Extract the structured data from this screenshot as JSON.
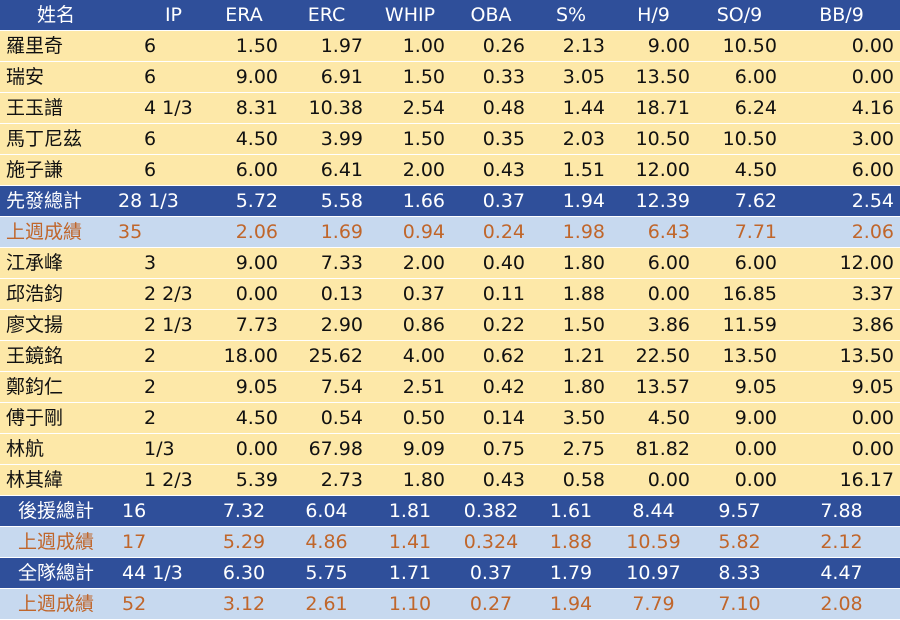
{
  "headers": [
    "姓名",
    "IP",
    "ERA",
    "ERC",
    "WHIP",
    "OBA",
    "S%",
    "H/9",
    "SO/9",
    "BB/9"
  ],
  "starters": [
    [
      "羅里奇",
      "6",
      "1.50",
      "1.97",
      "1.00",
      "0.26",
      "2.13",
      "9.00",
      "10.50",
      "0.00"
    ],
    [
      "瑞安",
      "6",
      "9.00",
      "6.91",
      "1.50",
      "0.33",
      "3.05",
      "13.50",
      "6.00",
      "0.00"
    ],
    [
      "王玉譜",
      "4 1/3",
      "8.31",
      "10.38",
      "2.54",
      "0.48",
      "1.44",
      "18.71",
      "6.24",
      "4.16"
    ],
    [
      "馬丁尼茲",
      "6",
      "4.50",
      "3.99",
      "1.50",
      "0.35",
      "2.03",
      "10.50",
      "10.50",
      "3.00"
    ],
    [
      "施子謙",
      "6",
      "6.00",
      "6.41",
      "2.00",
      "0.43",
      "1.51",
      "12.00",
      "4.50",
      "6.00"
    ]
  ],
  "starters_total": [
    "先發總計",
    "28 1/3",
    "5.72",
    "5.58",
    "1.66",
    "0.37",
    "1.94",
    "12.39",
    "7.62",
    "2.54"
  ],
  "starters_last_week": [
    "上週成績",
    "35",
    "2.06",
    "1.69",
    "0.94",
    "0.24",
    "1.98",
    "6.43",
    "7.71",
    "2.06"
  ],
  "relievers": [
    [
      "江承峰",
      "3",
      "9.00",
      "7.33",
      "2.00",
      "0.40",
      "1.80",
      "6.00",
      "6.00",
      "12.00"
    ],
    [
      "邱浩鈞",
      "2 2/3",
      "0.00",
      "0.13",
      "0.37",
      "0.11",
      "1.88",
      "0.00",
      "16.85",
      "3.37"
    ],
    [
      "廖文揚",
      "2 1/3",
      "7.73",
      "2.90",
      "0.86",
      "0.22",
      "1.50",
      "3.86",
      "11.59",
      "3.86"
    ],
    [
      "王鏡銘",
      "2",
      "18.00",
      "25.62",
      "4.00",
      "0.62",
      "1.21",
      "22.50",
      "13.50",
      "13.50"
    ],
    [
      "鄭鈞仁",
      "2",
      "9.05",
      "7.54",
      "2.51",
      "0.42",
      "1.80",
      "13.57",
      "9.05",
      "9.05"
    ],
    [
      "傅于剛",
      "2",
      "4.50",
      "0.54",
      "0.50",
      "0.14",
      "3.50",
      "4.50",
      "9.00",
      "0.00"
    ],
    [
      "林航",
      "1/3",
      "0.00",
      "67.98",
      "9.09",
      "0.75",
      "2.75",
      "81.82",
      "0.00",
      "0.00"
    ],
    [
      "林其緯",
      "1 2/3",
      "5.39",
      "2.73",
      "1.80",
      "0.43",
      "0.58",
      "0.00",
      "0.00",
      "16.17"
    ]
  ],
  "relievers_total": [
    "後援總計",
    "16",
    "7.32",
    "6.04",
    "1.81",
    "0.382",
    "1.61",
    "8.44",
    "9.57",
    "7.88"
  ],
  "relievers_last_week": [
    "上週成績",
    "17",
    "5.29",
    "4.86",
    "1.41",
    "0.324",
    "1.88",
    "10.59",
    "5.82",
    "2.12"
  ],
  "team_total": [
    "全隊總計",
    "44 1/3",
    "6.30",
    "5.75",
    "1.71",
    "0.37",
    "1.79",
    "10.97",
    "8.33",
    "4.47"
  ],
  "team_last_week": [
    "上週成績",
    "52",
    "3.12",
    "2.61",
    "1.10",
    "0.27",
    "1.94",
    "7.79",
    "7.10",
    "2.08"
  ],
  "colors": {
    "header_bg": "#2f4f9a",
    "player_bg": "#fde8a8",
    "last_week_bg": "#c7d9ef",
    "last_week_text": "#c0662b"
  }
}
